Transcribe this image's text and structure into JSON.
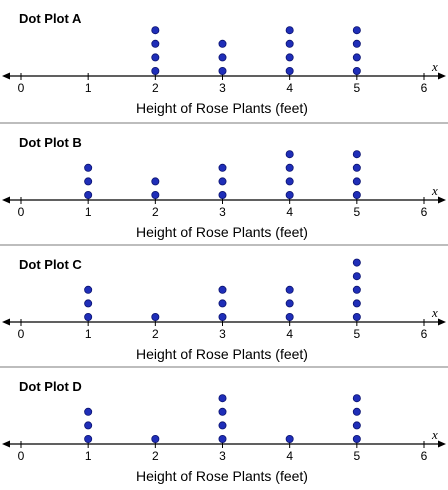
{
  "chart_data": [
    {
      "type": "scatter",
      "title": "Dot Plot A",
      "xlabel": "Height of Rose Plants (feet)",
      "axis_variable": "x",
      "xlim": [
        0,
        6
      ],
      "ticks": [
        0,
        1,
        2,
        3,
        4,
        5,
        6
      ],
      "counts": {
        "0": 0,
        "1": 0,
        "2": 4,
        "3": 3,
        "4": 4,
        "5": 4,
        "6": 0
      },
      "dot_color": "#1f2eb8"
    },
    {
      "type": "scatter",
      "title": "Dot Plot B",
      "xlabel": "Height of Rose Plants (feet)",
      "axis_variable": "x",
      "xlim": [
        0,
        6
      ],
      "ticks": [
        0,
        1,
        2,
        3,
        4,
        5,
        6
      ],
      "counts": {
        "0": 0,
        "1": 3,
        "2": 2,
        "3": 3,
        "4": 4,
        "5": 4,
        "6": 0
      },
      "dot_color": "#1f2eb8"
    },
    {
      "type": "scatter",
      "title": "Dot Plot C",
      "xlabel": "Height of Rose Plants (feet)",
      "axis_variable": "x",
      "xlim": [
        0,
        6
      ],
      "ticks": [
        0,
        1,
        2,
        3,
        4,
        5,
        6
      ],
      "counts": {
        "0": 0,
        "1": 3,
        "2": 1,
        "3": 3,
        "4": 3,
        "5": 5,
        "6": 0
      },
      "dot_color": "#1f2eb8"
    },
    {
      "type": "scatter",
      "title": "Dot Plot D",
      "xlabel": "Height of Rose Plants (feet)",
      "axis_variable": "x",
      "xlim": [
        0,
        6
      ],
      "ticks": [
        0,
        1,
        2,
        3,
        4,
        5,
        6
      ],
      "counts": {
        "0": 0,
        "1": 3,
        "2": 1,
        "3": 4,
        "4": 1,
        "5": 4,
        "6": 0
      },
      "dot_color": "#1f2eb8"
    }
  ]
}
